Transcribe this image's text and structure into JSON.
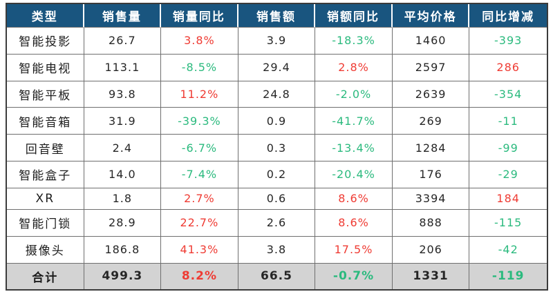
{
  "chart_data": {
    "type": "table",
    "columns": [
      "类型",
      "销售量",
      "销量同比",
      "销售额",
      "销额同比",
      "平均价格",
      "同比增减"
    ],
    "rows": [
      {
        "category": "智能投影",
        "sales_volume": "26.7",
        "volume_yoy": "3.8%",
        "sales_amount": "3.9",
        "amount_yoy": "-18.3%",
        "avg_price": "1460",
        "yoy_change": "-393"
      },
      {
        "category": "智能电视",
        "sales_volume": "113.1",
        "volume_yoy": "-8.5%",
        "sales_amount": "29.4",
        "amount_yoy": "2.8%",
        "avg_price": "2597",
        "yoy_change": "286"
      },
      {
        "category": "智能平板",
        "sales_volume": "93.8",
        "volume_yoy": "11.2%",
        "sales_amount": "24.8",
        "amount_yoy": "-2.0%",
        "avg_price": "2639",
        "yoy_change": "-354"
      },
      {
        "category": "智能音箱",
        "sales_volume": "31.9",
        "volume_yoy": "-39.3%",
        "sales_amount": "0.9",
        "amount_yoy": "-41.7%",
        "avg_price": "269",
        "yoy_change": "-11"
      },
      {
        "category": "回音壁",
        "sales_volume": "2.4",
        "volume_yoy": "-6.7%",
        "sales_amount": "0.3",
        "amount_yoy": "-13.4%",
        "avg_price": "1284",
        "yoy_change": "-99"
      },
      {
        "category": "智能盒子",
        "sales_volume": "14.0",
        "volume_yoy": "-7.4%",
        "sales_amount": "0.2",
        "amount_yoy": "-20.4%",
        "avg_price": "176",
        "yoy_change": "-29"
      },
      {
        "category": "XR",
        "sales_volume": "1.8",
        "volume_yoy": "2.7%",
        "sales_amount": "0.6",
        "amount_yoy": "8.6%",
        "avg_price": "3394",
        "yoy_change": "184"
      },
      {
        "category": "智能门锁",
        "sales_volume": "28.9",
        "volume_yoy": "22.7%",
        "sales_amount": "2.6",
        "amount_yoy": "8.6%",
        "avg_price": "888",
        "yoy_change": "-115"
      },
      {
        "category": "摄像头",
        "sales_volume": "186.8",
        "volume_yoy": "41.3%",
        "sales_amount": "3.8",
        "amount_yoy": "17.5%",
        "avg_price": "206",
        "yoy_change": "-42"
      }
    ],
    "total": {
      "category": "合计",
      "sales_volume": "499.3",
      "volume_yoy": "8.2%",
      "sales_amount": "66.5",
      "amount_yoy": "-0.7%",
      "avg_price": "1331",
      "yoy_change": "-119"
    }
  },
  "colors": {
    "header_background": "#19557f",
    "header_text": "#ffffff",
    "increase_red": "#ef3b33",
    "decrease_green": "#2bba7e",
    "total_row_background": "#d3d3d3",
    "grid_line": "#6e6e6e",
    "outer_border": "#3b3b3b"
  }
}
